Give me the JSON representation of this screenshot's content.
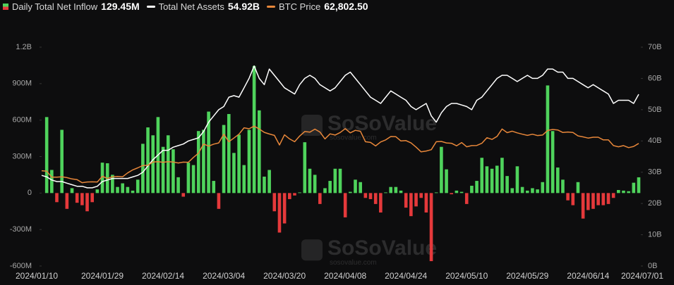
{
  "chart_data": {
    "type": "combo",
    "watermark": [
      "SoSoValue",
      "sosovalue.com"
    ],
    "categories": [
      "2024/01/10",
      null,
      null,
      null,
      null,
      null,
      null,
      null,
      null,
      null,
      null,
      null,
      "2024/01/29",
      null,
      null,
      null,
      null,
      null,
      null,
      null,
      null,
      null,
      null,
      null,
      "2024/02/14",
      null,
      null,
      null,
      null,
      null,
      null,
      null,
      null,
      null,
      null,
      null,
      "2024/03/04",
      null,
      null,
      null,
      null,
      null,
      null,
      null,
      null,
      null,
      null,
      null,
      "2024/03/20",
      null,
      null,
      null,
      null,
      null,
      null,
      null,
      null,
      null,
      null,
      null,
      "2024/04/08",
      null,
      null,
      null,
      null,
      null,
      null,
      null,
      null,
      null,
      null,
      null,
      "2024/04/24",
      null,
      null,
      null,
      null,
      null,
      null,
      null,
      null,
      null,
      null,
      null,
      "2024/05/10",
      null,
      null,
      null,
      null,
      null,
      null,
      null,
      null,
      null,
      null,
      null,
      "2024/05/29",
      null,
      null,
      null,
      null,
      null,
      null,
      null,
      null,
      null,
      null,
      null,
      "2024/06/14",
      null,
      null,
      null,
      null,
      null,
      null,
      null,
      null,
      null,
      "2024/07/01"
    ],
    "ylim": [
      -600000000,
      1200000000
    ],
    "yticks": [
      {
        "value": -600000000,
        "label": "-600M"
      },
      {
        "value": -300000000,
        "label": "-300M"
      },
      0,
      {
        "value": 300000000,
        "label": "300M"
      },
      {
        "value": 600000000,
        "label": "600M"
      },
      {
        "value": 900000000,
        "label": "900M"
      },
      {
        "value": 1200000000,
        "label": "1.2B"
      }
    ],
    "y2lim": [
      0,
      70000000000
    ],
    "y2ticks": [
      {
        "value": 0,
        "label": "0B"
      },
      {
        "value": 10000000000,
        "label": "10B"
      },
      {
        "value": 20000000000,
        "label": "20B"
      },
      {
        "value": 30000000000,
        "label": "30B"
      },
      {
        "value": 40000000000,
        "label": "40B"
      },
      {
        "value": 50000000000,
        "label": "50B"
      },
      {
        "value": 60000000000,
        "label": "60B"
      },
      {
        "value": 70000000000,
        "label": "70B"
      }
    ],
    "y3lim": [
      -10000,
      120000
    ],
    "grid": false,
    "series": [
      {
        "name": "Daily Total Net Inflow",
        "legend_value": "129.45M",
        "type": "bar",
        "axis": "y",
        "color": "#4fd35c",
        "negative_color": "#e5393b",
        "values": [
          null,
          625000000.0,
          190000000.0,
          -75000000.0,
          520000000.0,
          -130000000.0,
          40000000.0,
          -80000000.0,
          -100000000.0,
          -150000000.0,
          -75000000.0,
          30000000.0,
          250000000.0,
          245000000.0,
          150000000.0,
          50000000.0,
          80000000.0,
          50000000.0,
          20000000.0,
          110000000.0,
          405000000.0,
          540000000.0,
          475000000.0,
          625000000.0,
          380000000.0,
          475000000.0,
          360000000.0,
          130000000.0,
          -30000000.0,
          250000000.0,
          230000000.0,
          510000000.0,
          520000000.0,
          670000000.0,
          100000000.0,
          -130000000.0,
          560000000.0,
          650000000.0,
          330000000.0,
          480000000.0,
          230000000.0,
          520000000.0,
          1045000000.0,
          680000000.0,
          135000000.0,
          190000000.0,
          -150000000.0,
          -325000000.0,
          -250000000.0,
          -50000000.0,
          -20000000.0,
          5000000.0,
          418000000.0,
          200000000.0,
          150000000.0,
          -90000000.0,
          40000000.0,
          100000000.0,
          200000000.0,
          200000000.0,
          -200000000.0,
          10000000.0,
          110000000.0,
          90000000.0,
          -40000000.0,
          -50000000.0,
          -90000000.0,
          -160000000.0,
          5000000.0,
          50000000.0,
          50000000.0,
          20000000.0,
          -120000000.0,
          -190000000.0,
          -110000000.0,
          -40000000.0,
          -160000000.0,
          -560000000.0,
          5000000.0,
          380000000.0,
          195000000.0,
          -10000000.0,
          20000000.0,
          10000000.0,
          -90000000.0,
          60000000.0,
          100000000.0,
          290000000.0,
          220000000.0,
          200000000.0,
          225000000.0,
          290000000.0,
          140000000.0,
          40000000.0,
          220000000.0,
          50000000.0,
          20000000.0,
          40000000.0,
          30000000.0,
          90000000.0,
          885000000.0,
          510000000.0,
          210000000.0,
          110000000.0,
          -60000000.0,
          -100000000.0,
          90000000.0,
          -210000000.0,
          -140000000.0,
          -130000000.0,
          -100000000.0,
          -100000000.0,
          -90000000.0,
          -40000000.0,
          25000000.0,
          20000000.0,
          15000000.0,
          85000000.0,
          129450000.0
        ]
      },
      {
        "name": "Total Net Assets",
        "legend_value": "54.92B",
        "type": "line",
        "axis": "y2",
        "color": "#ffffff",
        "values": [
          29000000000.0,
          28500000000.0,
          27500000000.0,
          27000000000.0,
          27000000000.0,
          26500000000.0,
          26000000000.0,
          25500000000.0,
          25500000000.0,
          25000000000.0,
          25000000000.0,
          25500000000.0,
          27000000000.0,
          27500000000.0,
          28000000000.0,
          28000000000.0,
          28000000000.0,
          28000000000.0,
          28500000000.0,
          29000000000.0,
          30000000000.0,
          32000000000.0,
          34000000000.0,
          35500000000.0,
          37000000000.0,
          37000000000.0,
          38000000000.0,
          38500000000.0,
          39000000000.0,
          40000000000.0,
          40500000000.0,
          41000000000.0,
          43000000000.0,
          46000000000.0,
          48000000000.0,
          50000000000.0,
          51000000000.0,
          54000000000.0,
          54500000000.0,
          54000000000.0,
          57000000000.0,
          60000000000.0,
          64000000000.0,
          60000000000.0,
          58000000000.0,
          63000000000.0,
          61000000000.0,
          59000000000.0,
          57000000000.0,
          56000000000.0,
          55000000000.0,
          58000000000.0,
          60000000000.0,
          61000000000.0,
          60000000000.0,
          58000000000.0,
          57000000000.0,
          56000000000.0,
          57000000000.0,
          59000000000.0,
          61000000000.0,
          62000000000.0,
          60000000000.0,
          58000000000.0,
          56000000000.0,
          54000000000.0,
          53000000000.0,
          52000000000.0,
          54000000000.0,
          56000000000.0,
          55000000000.0,
          54000000000.0,
          53000000000.0,
          51000000000.0,
          50000000000.0,
          51000000000.0,
          52000000000.0,
          48000000000.0,
          46000000000.0,
          49000000000.0,
          51000000000.0,
          52000000000.0,
          52000000000.0,
          51500000000.0,
          51000000000.0,
          50000000000.0,
          53000000000.0,
          54000000000.0,
          56000000000.0,
          58000000000.0,
          60000000000.0,
          61000000000.0,
          61000000000.0,
          60000000000.0,
          59000000000.0,
          60000000000.0,
          61000000000.0,
          60000000000.0,
          60000000000.0,
          61000000000.0,
          63000000000.0,
          63000000000.0,
          62000000000.0,
          62000000000.0,
          60000000000.0,
          60000000000.0,
          59000000000.0,
          58000000000.0,
          57000000000.0,
          58000000000.0,
          57000000000.0,
          56000000000.0,
          55000000000.0,
          52000000000.0,
          53000000000.0,
          53000000000.0,
          53000000000.0,
          52000000000.0,
          54920000000.0
        ]
      },
      {
        "name": "BTC Price",
        "legend_value": "62,802.50",
        "type": "line",
        "axis": "y3",
        "color": "#e8873a",
        "values": [
          46600,
          46300,
          42800,
          42800,
          43000,
          42500,
          41700,
          41300,
          39500,
          39900,
          40000,
          39900,
          43300,
          42000,
          43000,
          43200,
          43000,
          45300,
          47100,
          48300,
          49700,
          49800,
          51800,
          52000,
          51600,
          52000,
          51800,
          51200,
          51700,
          51600,
          54500,
          57000,
          62500,
          61200,
          62400,
          63100,
          68300,
          63800,
          66000,
          68300,
          72100,
          71500,
          73100,
          71400,
          69400,
          68400,
          67600,
          61900,
          67900,
          65500,
          63800,
          67200,
          69900,
          69500,
          71300,
          69600,
          65500,
          68500,
          67800,
          69300,
          71600,
          69100,
          70600,
          70000,
          63800,
          63400,
          61300,
          63700,
          64900,
          66900,
          66800,
          64300,
          64500,
          63100,
          60600,
          57800,
          58300,
          59100,
          63800,
          64000,
          63100,
          62900,
          61400,
          63300,
          60800,
          61500,
          61600,
          62900,
          66200,
          65200,
          67000,
          71400,
          69200,
          70100,
          69100,
          68300,
          67600,
          68300,
          67500,
          67800,
          70500,
          71100,
          70800,
          69300,
          69600,
          69300,
          67300,
          66700,
          66000,
          66500,
          66500,
          64900,
          64900,
          61500,
          60800,
          61500,
          60300,
          61000,
          62802.5
        ]
      }
    ]
  }
}
